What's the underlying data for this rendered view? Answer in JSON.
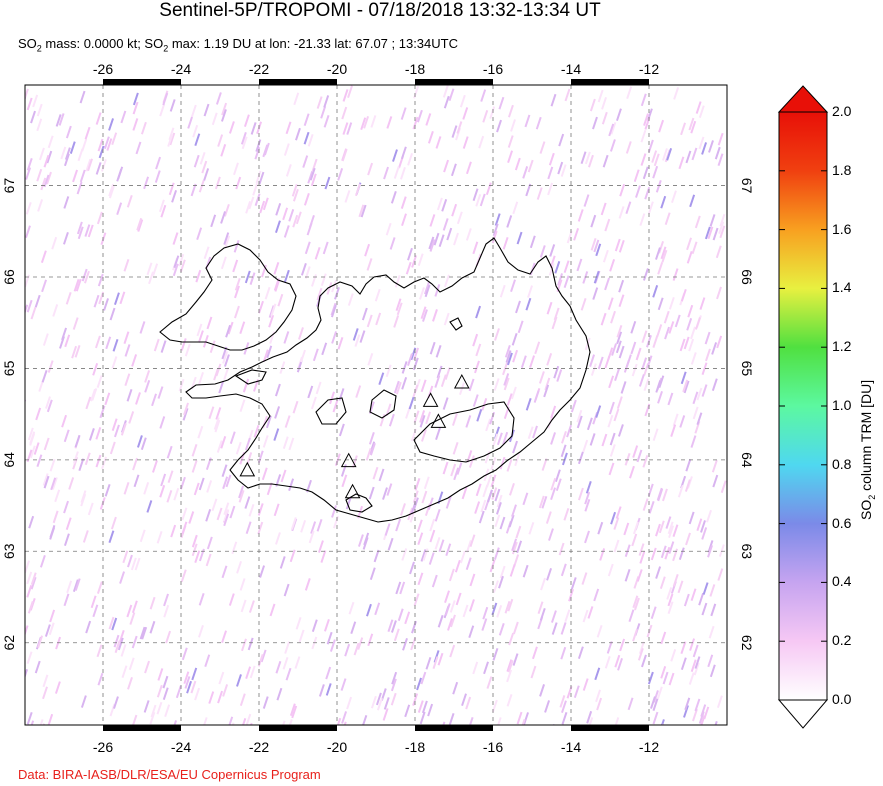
{
  "header": {
    "title": "Sentinel-5P/TROPOMI - 07/18/2018 13:32-13:34 UT",
    "subtitle_prefix1": "SO",
    "subtitle_mid1": " mass: 0.0000 kt; SO",
    "subtitle_rest": " max: 1.19 DU at lon: -21.33 lat: 67.07 ; 13:34UTC",
    "sub_index": "2"
  },
  "footer": {
    "credit": "Data: BIRA-IASB/DLR/ESA/EU Copernicus Program"
  },
  "map": {
    "lon_ticks": [
      "-26",
      "-24",
      "-22",
      "-20",
      "-18",
      "-16",
      "-14",
      "-12"
    ],
    "lat_ticks": [
      "67",
      "66",
      "65",
      "64",
      "63",
      "62"
    ],
    "lon_range": [
      -28,
      -10
    ],
    "lat_range": [
      61.1,
      68.1
    ],
    "volcanoes": [
      {
        "lon": -22.3,
        "lat": 63.88
      },
      {
        "lon": -19.7,
        "lat": 63.98
      },
      {
        "lon": -19.6,
        "lat": 63.64
      },
      {
        "lon": -17.6,
        "lat": 64.64
      },
      {
        "lon": -17.4,
        "lat": 64.41
      },
      {
        "lon": -16.8,
        "lat": 64.84
      }
    ],
    "accent_colors": {
      "coast": "#000000",
      "grid": "#777777",
      "noise": "#f4c4f4"
    }
  },
  "colorbar": {
    "ticks": [
      "2.0",
      "1.8",
      "1.6",
      "1.4",
      "1.2",
      "1.0",
      "0.8",
      "0.6",
      "0.4",
      "0.2",
      "0.0"
    ],
    "title_pre": "SO",
    "title_sub": "2",
    "title_post": " column TRM [DU]",
    "stops": [
      "#ffffff",
      "#f6c8f4",
      "#c6a4f0",
      "#7b8ae8",
      "#4fd8f0",
      "#5cf8a0",
      "#50e040",
      "#e8f040",
      "#f8a020",
      "#f04010",
      "#e81008"
    ]
  }
}
